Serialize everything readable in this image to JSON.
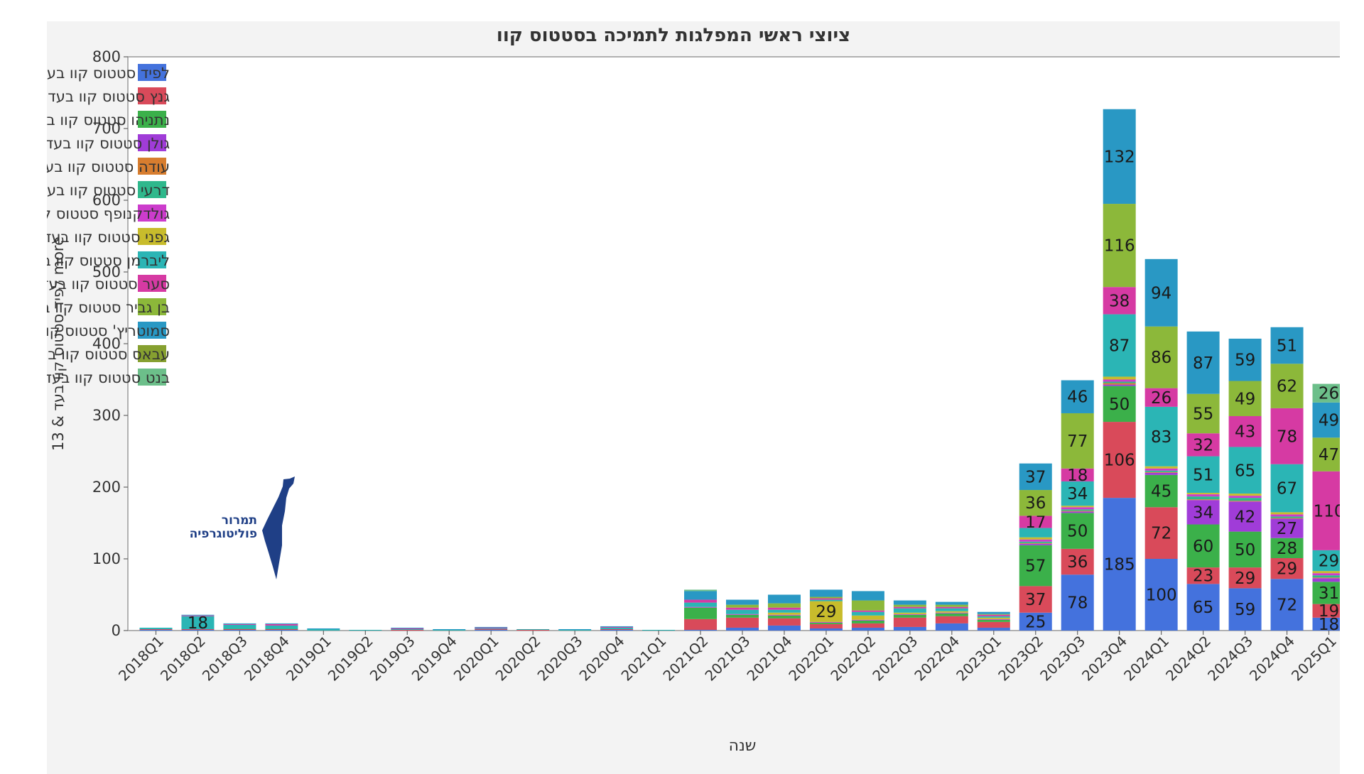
{
  "watermark": {
    "line1": "תמרור",
    "line2": "פוליטוגרפיה"
  },
  "chart_data": {
    "type": "bar",
    "stacked": true,
    "title": "ציוצי ראשי המפלגות לתמיכה בסטטוס קוו",
    "xlabel": "שנה",
    "ylabel": "13 & לפיד סטטוס קוו בעד more",
    "ylim": [
      0,
      800
    ],
    "yticks": [
      0,
      100,
      200,
      300,
      400,
      500,
      600,
      700,
      800
    ],
    "grid": false,
    "legend_position": "top-left",
    "categories": [
      "2018Q1",
      "2018Q2",
      "2018Q3",
      "2018Q4",
      "2019Q1",
      "2019Q2",
      "2019Q3",
      "2019Q4",
      "2020Q1",
      "2020Q2",
      "2020Q3",
      "2020Q4",
      "2021Q1",
      "2021Q2",
      "2021Q3",
      "2021Q4",
      "2022Q1",
      "2022Q2",
      "2022Q3",
      "2022Q4",
      "2023Q1",
      "2023Q2",
      "2023Q3",
      "2023Q4",
      "2024Q1",
      "2024Q2",
      "2024Q3",
      "2024Q4",
      "2025Q1"
    ],
    "series": [
      {
        "name": "לפיד סטטוס קוו בעד",
        "color": "#4472dd",
        "values": [
          1,
          1,
          1,
          1,
          0,
          0,
          0,
          0,
          1,
          0,
          0,
          1,
          0,
          1,
          4,
          7,
          3,
          4,
          5,
          10,
          4,
          25,
          78,
          185,
          100,
          65,
          59,
          72,
          18
        ]
      },
      {
        "name": "גנץ סטטוס קוו בעד",
        "color": "#d94a5a",
        "values": [
          1,
          1,
          1,
          1,
          0,
          0,
          1,
          0,
          1,
          1,
          0,
          1,
          0,
          15,
          14,
          10,
          6,
          6,
          13,
          10,
          8,
          37,
          36,
          106,
          72,
          23,
          29,
          29,
          19
        ]
      },
      {
        "name": "נתניהו סטטוס קוו בעד",
        "color": "#3bb04a",
        "values": [
          0,
          0,
          0,
          0,
          0,
          0,
          0,
          0,
          0,
          0,
          0,
          0,
          0,
          16,
          4,
          4,
          2,
          4,
          4,
          4,
          3,
          57,
          50,
          50,
          45,
          60,
          50,
          28,
          31
        ]
      },
      {
        "name": "גולן סטטוס קוו בעד",
        "color": "#a03cd8",
        "values": [
          0,
          0,
          0,
          0,
          0,
          0,
          0,
          0,
          0,
          0,
          0,
          0,
          0,
          0,
          0,
          0,
          0,
          0,
          0,
          0,
          0,
          2,
          2,
          2,
          3,
          34,
          42,
          27,
          5
        ]
      },
      {
        "name": "עודה סטטוס קוו בעד",
        "color": "#d77d2f",
        "values": [
          0,
          0,
          0,
          0,
          0,
          0,
          0,
          0,
          0,
          0,
          0,
          0,
          0,
          0,
          0,
          0,
          0,
          0,
          0,
          0,
          0,
          1,
          1,
          2,
          1,
          1,
          1,
          1,
          1
        ]
      },
      {
        "name": "דרעי סטטוס קוו בעד",
        "color": "#2fb88c",
        "values": [
          0,
          0,
          1,
          1,
          0,
          0,
          0,
          0,
          0,
          0,
          0,
          0,
          0,
          0,
          0,
          0,
          0,
          0,
          0,
          0,
          0,
          2,
          2,
          2,
          2,
          4,
          4,
          2,
          3
        ]
      },
      {
        "name": "גולדקנופף סטטוס קוו בעד",
        "color": "#cc3ccc",
        "values": [
          0,
          0,
          0,
          0,
          0,
          0,
          0,
          0,
          0,
          0,
          0,
          0,
          0,
          1,
          1,
          1,
          1,
          1,
          1,
          1,
          1,
          3,
          3,
          3,
          3,
          3,
          3,
          3,
          3
        ]
      },
      {
        "name": "גפני סטטוס קוו בעד",
        "color": "#c8bc2c",
        "values": [
          0,
          0,
          0,
          0,
          0,
          0,
          0,
          0,
          0,
          0,
          0,
          0,
          0,
          0,
          0,
          3,
          29,
          6,
          2,
          2,
          2,
          3,
          2,
          4,
          3,
          2,
          3,
          3,
          3
        ]
      },
      {
        "name": "ליברמן סטטוס קוו בעד",
        "color": "#2bb5b5",
        "values": [
          2,
          18,
          5,
          4,
          2,
          1,
          1,
          1,
          1,
          1,
          1,
          2,
          1,
          6,
          6,
          4,
          2,
          5,
          6,
          4,
          2,
          13,
          34,
          87,
          83,
          51,
          65,
          67,
          29
        ]
      },
      {
        "name": "סער סטטוס קוו בעד",
        "color": "#d63aa3",
        "values": [
          0,
          1,
          1,
          2,
          0,
          0,
          1,
          0,
          1,
          0,
          0,
          1,
          0,
          4,
          3,
          3,
          2,
          2,
          2,
          2,
          2,
          17,
          18,
          38,
          26,
          32,
          43,
          78,
          110
        ]
      },
      {
        "name": "בן גביר סטטוס קוו בעד",
        "color": "#8cb83a",
        "values": [
          0,
          0,
          0,
          0,
          0,
          0,
          0,
          0,
          0,
          0,
          0,
          0,
          0,
          0,
          4,
          6,
          2,
          14,
          3,
          3,
          1,
          36,
          77,
          116,
          86,
          55,
          49,
          62,
          47
        ]
      },
      {
        "name": "סמוטריץ' סטטוס קוו בעד",
        "color": "#2998c4",
        "values": [
          0,
          1,
          1,
          1,
          1,
          0,
          1,
          1,
          1,
          0,
          1,
          1,
          0,
          12,
          7,
          12,
          10,
          13,
          6,
          4,
          3,
          37,
          46,
          132,
          94,
          87,
          59,
          51,
          49
        ]
      },
      {
        "name": "עבאס סטטוס קוו בעד",
        "color": "#86a030",
        "values": [
          0,
          0,
          0,
          0,
          0,
          0,
          0,
          0,
          0,
          0,
          0,
          0,
          0,
          0,
          0,
          0,
          0,
          0,
          0,
          0,
          0,
          0,
          0,
          0,
          0,
          0,
          0,
          0,
          0
        ]
      },
      {
        "name": "בנט סטטוס קוו בעד",
        "color": "#6cbf8a",
        "values": [
          0,
          0,
          0,
          0,
          0,
          0,
          0,
          0,
          0,
          0,
          0,
          0,
          0,
          2,
          0,
          0,
          0,
          0,
          0,
          0,
          0,
          0,
          0,
          0,
          0,
          0,
          0,
          0,
          26
        ]
      }
    ]
  }
}
